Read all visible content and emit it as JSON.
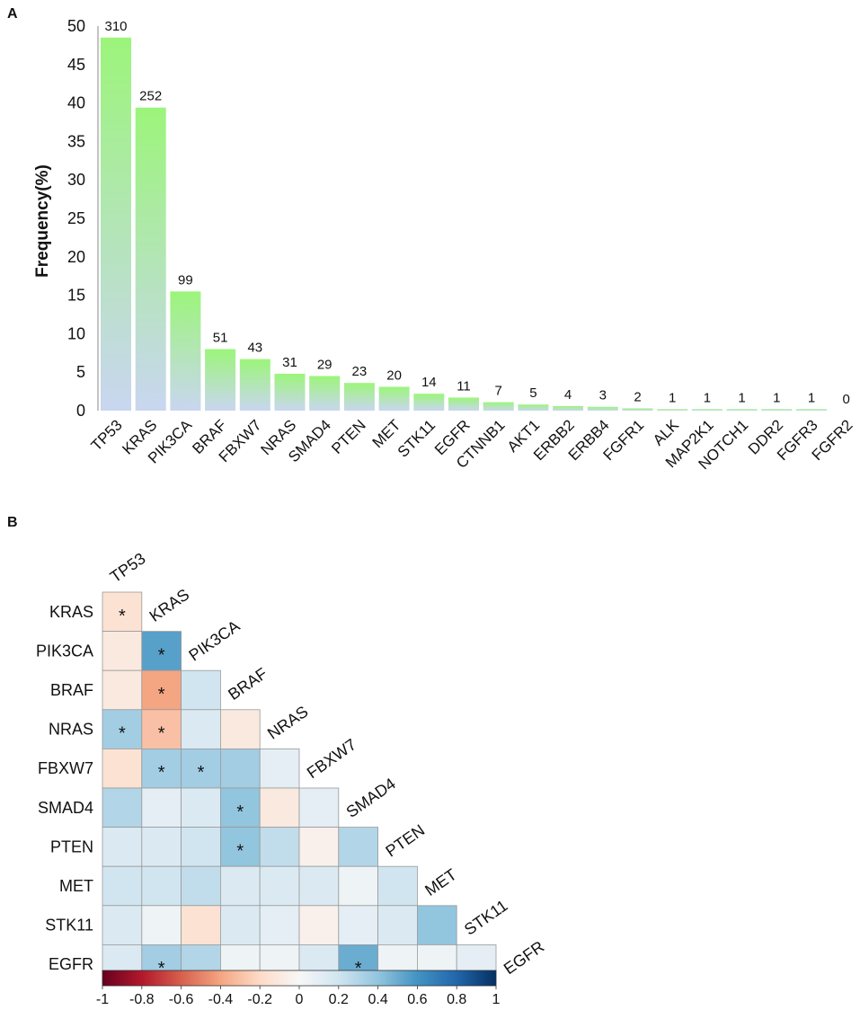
{
  "chart_data": [
    {
      "panel": "A",
      "type": "bar",
      "title": "",
      "xlabel": "",
      "ylabel": "Frequency(%)",
      "ylim": [
        0,
        50
      ],
      "yticks": [
        "0",
        "5",
        "10",
        "15",
        "20",
        "25",
        "30",
        "35",
        "40",
        "45",
        "50"
      ],
      "categories": [
        "TP53",
        "KRAS",
        "PIK3CA",
        "BRAF",
        "FBXW7",
        "NRAS",
        "SMAD4",
        "PTEN",
        "MET",
        "STK11",
        "EGFR",
        "CTNNB1",
        "AKT1",
        "ERBB2",
        "ERBB4",
        "FGFR1",
        "ALK",
        "MAP2K1",
        "NOTCH1",
        "DDR2",
        "FGFR3",
        "FGFR2"
      ],
      "values": [
        48.5,
        39.4,
        15.5,
        8.0,
        6.7,
        4.8,
        4.5,
        3.6,
        3.1,
        2.2,
        1.7,
        1.1,
        0.8,
        0.6,
        0.5,
        0.3,
        0.2,
        0.2,
        0.2,
        0.2,
        0.2,
        0.0
      ],
      "labels": [
        "310",
        "252",
        "99",
        "51",
        "43",
        "31",
        "29",
        "23",
        "20",
        "14",
        "11",
        "7",
        "5",
        "4",
        "3",
        "2",
        "1",
        "1",
        "1",
        "1",
        "1",
        "0"
      ],
      "colors": {
        "top": "#9cf57a",
        "bottom": "#c9d6f0"
      }
    },
    {
      "panel": "B",
      "type": "heatmap",
      "genes": [
        "TP53",
        "KRAS",
        "PIK3CA",
        "BRAF",
        "NRAS",
        "FBXW7",
        "SMAD4",
        "PTEN",
        "MET",
        "STK11",
        "EGFR"
      ],
      "lower_triangle": [
        [
          -0.15
        ],
        [
          -0.1,
          0.55
        ],
        [
          -0.1,
          -0.4,
          0.2
        ],
        [
          0.35,
          -0.3,
          0.15,
          -0.1
        ],
        [
          -0.15,
          0.35,
          0.35,
          0.35,
          0.1
        ],
        [
          0.3,
          0.1,
          0.15,
          0.4,
          -0.1,
          0.1
        ],
        [
          0.15,
          0.15,
          0.2,
          0.4,
          0.25,
          -0.05,
          0.3
        ],
        [
          0.2,
          0.2,
          0.25,
          0.15,
          0.15,
          0.15,
          0.05,
          0.2
        ],
        [
          0.15,
          0.05,
          -0.15,
          0.15,
          0.1,
          -0.05,
          0.1,
          0.15,
          0.4
        ],
        [
          0.15,
          0.35,
          0.3,
          0.05,
          0.05,
          0.15,
          0.5,
          0.05,
          0.05,
          0.1
        ]
      ],
      "significant": [
        [
          true
        ],
        [
          false,
          true
        ],
        [
          false,
          true,
          false
        ],
        [
          true,
          true,
          false,
          false
        ],
        [
          false,
          true,
          true,
          false,
          false
        ],
        [
          false,
          false,
          false,
          true,
          false,
          false
        ],
        [
          false,
          false,
          false,
          true,
          false,
          false,
          false
        ],
        [
          false,
          false,
          false,
          false,
          false,
          false,
          false,
          false
        ],
        [
          false,
          false,
          false,
          false,
          false,
          false,
          false,
          false,
          false
        ],
        [
          false,
          true,
          false,
          false,
          false,
          false,
          true,
          false,
          false,
          false
        ]
      ],
      "star_symbol": "*",
      "colorbar": {
        "range": [
          -1,
          1
        ],
        "ticks": [
          "-1",
          "-0.8",
          "-0.6",
          "-0.4",
          "-0.2",
          "0",
          "0.2",
          "0.4",
          "0.6",
          "0.8",
          "1"
        ],
        "stops": [
          "#67001f",
          "#b2182b",
          "#d6604d",
          "#f4a582",
          "#fddbc7",
          "#f7f7f7",
          "#d1e5f0",
          "#92c5de",
          "#4393c3",
          "#2166ac",
          "#053061"
        ]
      }
    }
  ]
}
